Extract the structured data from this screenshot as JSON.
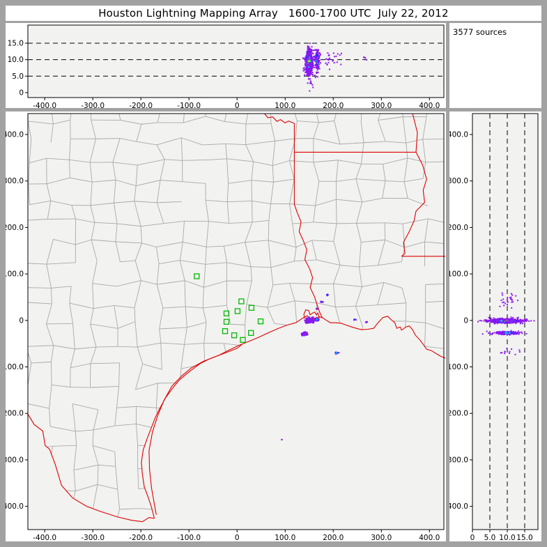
{
  "title": "Houston Lightning Mapping Array   1600-1700 UTC  July 22, 2012",
  "annotation": "3577 sources",
  "colors": {
    "page_bg": "#a2a2a2",
    "panel_bg": "#ffffff",
    "plot_bg": "#f2f2f0",
    "axis": "#000000",
    "county_line": "#a9a9a9",
    "state_border": "#dd0000",
    "station": "#00b800",
    "density_palettes": {
      "hot": [
        "#ff2200",
        "#ffe000",
        "#22dd22",
        "#00ccff",
        "#2929ff",
        "#8c19f0"
      ],
      "warm": [
        "#ffe000",
        "#22dd22",
        "#00ccff",
        "#2929ff",
        "#8c19f0"
      ],
      "green": [
        "#22dd22",
        "#00ccff",
        "#2929ff",
        "#8c19f0"
      ],
      "cool": [
        "#00ccff",
        "#2929ff",
        "#8c19f0"
      ],
      "purple": [
        "#8c19f0"
      ]
    }
  },
  "chart_data": {
    "type": "scatter",
    "title": "Houston Lightning Mapping Array   1600-1700 UTC  July 22, 2012",
    "sources_count": 3577,
    "panels": {
      "top": {
        "description": "lightning source altitude (km) vs east-west distance (km)",
        "xlim": [
          -435,
          430
        ],
        "ylim": [
          -1.5,
          20.5
        ],
        "xticks": [
          -400,
          -300,
          -200,
          -100,
          0,
          100,
          200,
          300,
          400
        ],
        "xtick_labels": [
          "-400.0",
          "-300.0",
          "-200.0",
          "-100.0",
          "0",
          "100.0",
          "200.0",
          "300.0",
          "400.0"
        ],
        "yticks": [
          0,
          5,
          10,
          15
        ],
        "ytick_labels": [
          "0",
          "5.0",
          "10.0",
          "15.0"
        ],
        "gridlines_y": [
          5,
          10,
          15
        ],
        "clusters": [
          {
            "cx": 150,
            "cy": 9.4,
            "sx": 3.4,
            "sy": 1.8,
            "n": 520,
            "palette": "warm"
          },
          {
            "cx": 150,
            "cy": 9.2,
            "sx": 5.5,
            "sy": 2.6,
            "n": 130,
            "palette": "purple"
          },
          {
            "cx": 167,
            "cy": 9.8,
            "sx": 1.6,
            "sy": 1.5,
            "n": 120,
            "palette": "green"
          },
          {
            "cx": 167,
            "cy": 9.5,
            "sx": 3.5,
            "sy": 2.2,
            "n": 50,
            "palette": "purple"
          },
          {
            "cx": 190,
            "cy": 10.0,
            "sx": 14,
            "sy": 1.2,
            "n": 28,
            "palette": "purple"
          },
          {
            "cx": 268,
            "cy": 10.3,
            "sx": 3.0,
            "sy": 0.8,
            "n": 4,
            "palette": "purple"
          },
          {
            "cx": 152,
            "cy": 3.0,
            "sx": 2.5,
            "sy": 1.2,
            "n": 8,
            "palette": "purple"
          }
        ]
      },
      "right": {
        "description": "north-south distance (km) vs lightning source altitude (km)",
        "xlim": [
          0,
          18.8
        ],
        "ylim": [
          -450,
          445
        ],
        "xticks": [
          0,
          5,
          10,
          15
        ],
        "xtick_labels": [
          "0",
          "5.0",
          "10.0",
          "15.0"
        ],
        "yticks": [
          -400,
          -300,
          -200,
          -100,
          0,
          100,
          200,
          300,
          400
        ],
        "ytick_labels": [
          "-400.0",
          "-300.0",
          "-200.0",
          "-100.0",
          "0",
          "100.0",
          "200.0",
          "300.0",
          "400.0"
        ],
        "gridlines_x": [
          5,
          10,
          15
        ],
        "clusters": [
          {
            "cx": 9.6,
            "cy": -1,
            "sx": 2.0,
            "sy": 2.0,
            "n": 520,
            "palette": "warm"
          },
          {
            "cx": 9.4,
            "cy": -1,
            "sx": 3.2,
            "sy": 3.4,
            "n": 130,
            "palette": "purple"
          },
          {
            "cx": 5.0,
            "cy": -1,
            "sx": 1.6,
            "sy": 1.4,
            "n": 25,
            "palette": "purple"
          },
          {
            "cx": 15.0,
            "cy": -1,
            "sx": 1.2,
            "sy": 1.2,
            "n": 18,
            "palette": "purple"
          },
          {
            "cx": 9.9,
            "cy": -27,
            "sx": 1.7,
            "sy": 1.4,
            "n": 130,
            "palette": "green"
          },
          {
            "cx": 9.6,
            "cy": -27,
            "sx": 3.0,
            "sy": 2.2,
            "n": 45,
            "palette": "purple"
          },
          {
            "cx": 10.2,
            "cy": 42,
            "sx": 1.6,
            "sy": 7.0,
            "n": 26,
            "palette": "purple"
          },
          {
            "cx": 10.5,
            "cy": -68,
            "sx": 1.5,
            "sy": 4.0,
            "n": 12,
            "palette": "purple"
          }
        ]
      },
      "map": {
        "description": "plan view map, east-west vs north-south distance (km) centered on Houston LMA",
        "xlim": [
          -435,
          430
        ],
        "ylim": [
          -450,
          445
        ],
        "xticks": [
          -400,
          -300,
          -200,
          -100,
          0,
          100,
          200,
          300,
          400
        ],
        "xtick_labels": [
          "-400.0",
          "-300.0",
          "-200.0",
          "-100.0",
          "0",
          "100.0",
          "200.0",
          "300.0",
          "400.0"
        ],
        "yticks": [
          -400,
          -300,
          -200,
          -100,
          0,
          100,
          200,
          300,
          400
        ],
        "ytick_labels": [
          "-400.0",
          "-300.0",
          "-200.0",
          "-100.0",
          "0",
          "100.0",
          "200.0",
          "300.0",
          "400.0"
        ],
        "stations": [
          [
            -84,
            95
          ],
          [
            9,
            41
          ],
          [
            30,
            27
          ],
          [
            1,
            20
          ],
          [
            -22,
            15
          ],
          [
            -22,
            -3
          ],
          [
            49,
            -2
          ],
          [
            -25,
            -23
          ],
          [
            -6,
            -32
          ],
          [
            29,
            -27
          ],
          [
            12,
            -42
          ]
        ],
        "clusters": [
          {
            "cx": 151,
            "cy": 0,
            "sx": 3.4,
            "sy": 2.0,
            "n": 300,
            "palette": "hot"
          },
          {
            "cx": 151,
            "cy": 0,
            "sx": 6.0,
            "sy": 3.4,
            "n": 70,
            "palette": "purple"
          },
          {
            "cx": 166,
            "cy": 2,
            "sx": 2.0,
            "sy": 1.5,
            "n": 55,
            "palette": "cool"
          },
          {
            "cx": 141,
            "cy": -29,
            "sx": 2.6,
            "sy": 1.6,
            "n": 90,
            "palette": "green"
          },
          {
            "cx": 141,
            "cy": -29,
            "sx": 4.5,
            "sy": 2.6,
            "n": 35,
            "palette": "purple"
          },
          {
            "cx": 176,
            "cy": 40,
            "sx": 1.4,
            "sy": 0.9,
            "n": 9,
            "palette": "cool"
          },
          {
            "cx": 166,
            "cy": 25,
            "sx": 1.0,
            "sy": 0.7,
            "n": 4,
            "palette": "purple"
          },
          {
            "cx": 188,
            "cy": 55,
            "sx": 1.2,
            "sy": 0.7,
            "n": 5,
            "palette": "cool"
          },
          {
            "cx": 206,
            "cy": -70,
            "sx": 2.8,
            "sy": 1.0,
            "n": 12,
            "palette": "cool"
          },
          {
            "cx": 245,
            "cy": 2,
            "sx": 1.4,
            "sy": 0.7,
            "n": 5,
            "palette": "cool"
          },
          {
            "cx": 270,
            "cy": -4,
            "sx": 1.4,
            "sy": 0.7,
            "n": 4,
            "palette": "purple"
          },
          {
            "cx": 93,
            "cy": -257,
            "sx": 0.8,
            "sy": 0.6,
            "n": 2,
            "palette": "purple"
          }
        ],
        "borders": {
          "red_river": [
            [
              57,
              445
            ],
            [
              64,
              436
            ],
            [
              74,
              438
            ],
            [
              83,
              428
            ],
            [
              90,
              432
            ],
            [
              100,
              425
            ],
            [
              107,
              429
            ],
            [
              119,
              424
            ]
          ],
          "tx_ar_line": [
            [
              119,
              424
            ],
            [
              119,
              250
            ]
          ],
          "ar_la_line": [
            [
              119,
              362
            ],
            [
              372,
              362
            ]
          ],
          "mississippi_river": [
            [
              365,
              445
            ],
            [
              375,
              404
            ],
            [
              372,
              362
            ],
            [
              386,
              334
            ],
            [
              394,
              304
            ],
            [
              387,
              280
            ],
            [
              390,
              254
            ],
            [
              372,
              235
            ],
            [
              368,
              214
            ],
            [
              357,
              189
            ],
            [
              346,
              168
            ],
            [
              349,
              144
            ],
            [
              342,
              138
            ]
          ],
          "la_ms_line": [
            [
              342,
              138
            ],
            [
              433,
              138
            ]
          ],
          "sabine_river": [
            [
              119,
              250
            ],
            [
              125,
              232
            ],
            [
              133,
              212
            ],
            [
              129,
              191
            ],
            [
              138,
              171
            ],
            [
              145,
              152
            ],
            [
              141,
              131
            ],
            [
              151,
              111
            ],
            [
              157,
              92
            ],
            [
              152,
              71
            ],
            [
              161,
              51
            ],
            [
              167,
              32
            ],
            [
              172,
              17
            ],
            [
              177,
              6
            ]
          ],
          "coastline": [
            [
              -172,
              -426
            ],
            [
              -178,
              -402
            ],
            [
              -185,
              -380
            ],
            [
              -193,
              -358
            ],
            [
              -197,
              -330
            ],
            [
              -199,
              -305
            ],
            [
              -195,
              -278
            ],
            [
              -187,
              -254
            ],
            [
              -178,
              -230
            ],
            [
              -170,
              -209
            ],
            [
              -160,
              -188
            ],
            [
              -149,
              -167
            ],
            [
              -135,
              -147
            ],
            [
              -120,
              -128
            ],
            [
              -99,
              -110
            ],
            [
              -77,
              -93
            ],
            [
              -58,
              -83
            ],
            [
              -38,
              -75
            ],
            [
              -17,
              -64
            ],
            [
              3,
              -54
            ],
            [
              25,
              -45
            ],
            [
              46,
              -36
            ],
            [
              66,
              -26
            ],
            [
              86,
              -17
            ],
            [
              104,
              -10
            ],
            [
              122,
              -5
            ],
            [
              138,
              6
            ],
            [
              146,
              10
            ],
            [
              152,
              4
            ],
            [
              158,
              8
            ],
            [
              163,
              2
            ],
            [
              170,
              8
            ],
            [
              177,
              6
            ],
            [
              186,
              0
            ],
            [
              194,
              -5
            ],
            [
              205,
              -5
            ],
            [
              216,
              -6
            ],
            [
              227,
              -10
            ],
            [
              238,
              -14
            ],
            [
              248,
              -17
            ],
            [
              259,
              -20
            ],
            [
              272,
              -19
            ],
            [
              284,
              -17
            ],
            [
              293,
              -5
            ],
            [
              303,
              6
            ],
            [
              313,
              9
            ],
            [
              320,
              2
            ],
            [
              328,
              -5
            ],
            [
              332,
              -17
            ],
            [
              339,
              -14
            ],
            [
              342,
              -21
            ],
            [
              351,
              -14
            ],
            [
              358,
              -12
            ],
            [
              365,
              -20
            ],
            [
              371,
              -32
            ],
            [
              380,
              -42
            ],
            [
              386,
              -50
            ],
            [
              394,
              -62
            ],
            [
              404,
              -65
            ],
            [
              415,
              -72
            ],
            [
              423,
              -77
            ],
            [
              433,
              -81
            ]
          ],
          "galveston_bay": [
            [
              140,
              4
            ],
            [
              139,
              14
            ],
            [
              143,
              23
            ],
            [
              149,
              21
            ],
            [
              152,
              12
            ],
            [
              157,
              16
            ],
            [
              161,
              18
            ],
            [
              165,
              12
            ],
            [
              168,
              16
            ],
            [
              171,
              4
            ]
          ],
          "rio_grande": [
            [
              -436,
              -200
            ],
            [
              -422,
              -224
            ],
            [
              -404,
              -238
            ],
            [
              -399,
              -269
            ],
            [
              -390,
              -277
            ],
            [
              -378,
              -310
            ],
            [
              -365,
              -355
            ],
            [
              -342,
              -382
            ],
            [
              -313,
              -400
            ],
            [
              -284,
              -411
            ],
            [
              -248,
              -423
            ],
            [
              -219,
              -430
            ],
            [
              -197,
              -433
            ],
            [
              -183,
              -424
            ],
            [
              -172,
              -426
            ]
          ],
          "barrier_island": [
            [
              -168,
              -418
            ],
            [
              -172,
              -395
            ],
            [
              -178,
              -360
            ],
            [
              -182,
              -320
            ],
            [
              -183,
              -280
            ],
            [
              -176,
              -240
            ],
            [
              -165,
              -205
            ],
            [
              -152,
              -172
            ],
            [
              -136,
              -142
            ],
            [
              -116,
              -120
            ],
            [
              -95,
              -102
            ],
            [
              -70,
              -88
            ],
            [
              -45,
              -78
            ],
            [
              -20,
              -68
            ],
            [
              0,
              -60
            ],
            [
              10,
              -52
            ]
          ]
        },
        "county_grid_hint": {
          "seed": 20120722,
          "cell_km": 46,
          "jitter_km": 9,
          "skip_prob": 0.17
        }
      }
    }
  }
}
